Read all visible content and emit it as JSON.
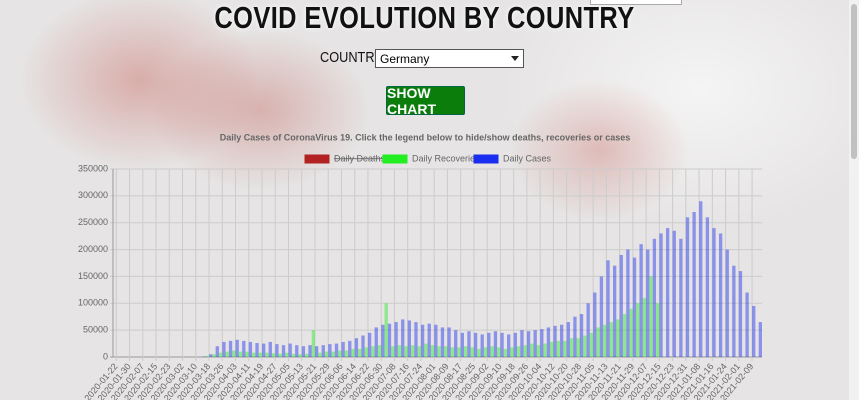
{
  "header": {
    "title": "COVID EVOLUTION BY COUNTRY"
  },
  "form": {
    "label": "COUNTRY:",
    "selected": "Germany",
    "button": "SHOW CHART"
  },
  "chart_data": {
    "type": "bar",
    "title": "Daily Cases of CoronaVirus 19. Click the legend below to hide/show deaths, recoveries or cases",
    "categories": [
      "2020-01-22",
      null,
      "2020-01-30",
      null,
      "2020-02-07",
      null,
      "2020-02-15",
      null,
      "2020-02-23",
      null,
      "2020-03-02",
      null,
      "2020-03-10",
      null,
      "2020-03-18",
      null,
      "2020-03-26",
      null,
      "2020-04-03",
      null,
      "2020-04-11",
      null,
      "2020-04-19",
      null,
      "2020-04-27",
      null,
      "2020-05-05",
      null,
      "2020-05-13",
      null,
      "2020-05-21",
      null,
      "2020-05-29",
      null,
      "2020-06-06",
      null,
      "2020-06-14",
      null,
      "2020-06-22",
      null,
      "2020-06-30",
      null,
      "2020-07-08",
      null,
      "2020-07-16",
      null,
      "2020-07-24",
      null,
      "2020-08-01",
      null,
      "2020-08-09",
      null,
      "2020-08-17",
      null,
      "2020-08-25",
      null,
      "2020-09-02",
      null,
      "2020-09-10",
      null,
      "2020-09-18",
      null,
      "2020-09-26",
      null,
      "2020-10-04",
      null,
      "2020-10-12",
      null,
      "2020-10-20",
      null,
      "2020-10-28",
      null,
      "2020-11-05",
      null,
      "2020-11-13",
      null,
      "2020-11-21",
      null,
      "2020-11-29",
      null,
      "2020-12-07",
      null,
      "2020-12-15",
      null,
      "2020-12-23",
      null,
      "2020-12-31",
      null,
      "2021-01-08",
      null,
      "2021-01-16",
      null,
      "2021-01-24",
      null,
      "2021-02-01",
      null,
      "2021-02-09",
      null
    ],
    "series": [
      {
        "name": "Daily Deaths",
        "color": "#b22222",
        "hidden": true
      },
      {
        "name": "Daily Recoveries",
        "color": "#22ee22",
        "hidden": false,
        "values": [
          0,
          0,
          0,
          0,
          0,
          0,
          0,
          0,
          0,
          0,
          0,
          0,
          0,
          0,
          2000,
          5000,
          8000,
          10000,
          12000,
          10000,
          10000,
          8000,
          8000,
          8000,
          7000,
          6000,
          8000,
          6000,
          5000,
          6000,
          50000,
          8000,
          10000,
          10000,
          12000,
          12000,
          15000,
          15000,
          18000,
          20000,
          22000,
          100000,
          20000,
          22000,
          20000,
          22000,
          20000,
          25000,
          22000,
          20000,
          20000,
          18000,
          18000,
          20000,
          18000,
          15000,
          18000,
          20000,
          18000,
          15000,
          18000,
          20000,
          22000,
          25000,
          22000,
          25000,
          28000,
          30000,
          30000,
          35000,
          35000,
          40000,
          45000,
          55000,
          60000,
          65000,
          70000,
          80000,
          90000,
          100000,
          110000,
          150000,
          100000,
          0,
          0,
          0,
          0,
          0,
          0,
          0,
          0,
          0,
          0,
          0,
          0,
          0,
          0,
          0
        ]
      },
      {
        "name": "Daily Cases",
        "color": "#1a2ef0",
        "hidden": false,
        "values": [
          0,
          0,
          0,
          0,
          0,
          0,
          0,
          0,
          0,
          0,
          0,
          0,
          0,
          1000,
          5000,
          20000,
          28000,
          30000,
          32000,
          30000,
          28000,
          26000,
          25000,
          28000,
          24000,
          22000,
          25000,
          22000,
          20000,
          22000,
          20000,
          22000,
          24000,
          25000,
          28000,
          30000,
          35000,
          40000,
          45000,
          55000,
          60000,
          62000,
          65000,
          70000,
          68000,
          65000,
          60000,
          62000,
          60000,
          55000,
          55000,
          50000,
          45000,
          48000,
          45000,
          42000,
          45000,
          48000,
          45000,
          42000,
          45000,
          50000,
          48000,
          50000,
          52000,
          55000,
          58000,
          60000,
          65000,
          75000,
          80000,
          100000,
          120000,
          150000,
          180000,
          170000,
          190000,
          200000,
          185000,
          210000,
          200000,
          220000,
          230000,
          240000,
          235000,
          220000,
          260000,
          270000,
          290000,
          260000,
          240000,
          230000,
          200000,
          170000,
          160000,
          120000,
          95000,
          65000
        ]
      }
    ],
    "ylim": [
      0,
      350000
    ],
    "yticks": [
      0,
      50000,
      100000,
      150000,
      200000,
      250000,
      300000,
      350000
    ],
    "grid": true
  }
}
